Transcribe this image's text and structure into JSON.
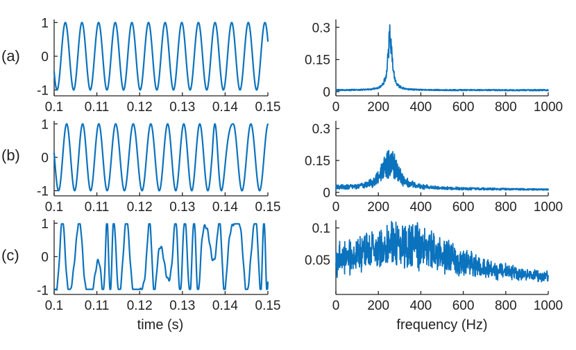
{
  "colors": {
    "series": "#0b72bd",
    "axis": "#222222"
  },
  "panel_labels": [
    "(a)",
    "(b)",
    "(c)"
  ],
  "axis_titles": {
    "time": "time (s)",
    "frequency": "frequency (Hz)"
  },
  "chart_data": [
    {
      "id": "a-time",
      "type": "line",
      "row": 0,
      "col": 0,
      "xlim": [
        0.1,
        0.15
      ],
      "ylim": [
        -1.05,
        1.05
      ],
      "xticks": [
        0.1,
        0.11,
        0.12,
        0.13,
        0.14,
        0.15
      ],
      "xtick_labels": [
        "0.1",
        "0.11",
        "0.12",
        "0.13",
        "0.14",
        "0.15"
      ],
      "yticks": [
        -1,
        0,
        1
      ],
      "ytick_labels": [
        "-1",
        "0",
        "1"
      ],
      "xlabel": "",
      "ylabel": "",
      "signal": {
        "kind": "sine",
        "freq_hz": 257,
        "phase": -0.78,
        "amplitude": 1.0,
        "disturbance": "none"
      }
    },
    {
      "id": "a-spectrum",
      "type": "line",
      "row": 0,
      "col": 1,
      "xlim": [
        0,
        1000
      ],
      "ylim": [
        0,
        0.33
      ],
      "xticks": [
        0,
        200,
        400,
        600,
        800,
        1000
      ],
      "xtick_labels": [
        "0",
        "200",
        "400",
        "600",
        "800",
        "1000"
      ],
      "yticks": [
        0,
        0.15,
        0.3
      ],
      "ytick_labels": [
        "0",
        "0.15",
        "0.3"
      ],
      "xlabel": "",
      "ylabel": "",
      "spectrum": {
        "peak_freq_hz": 255,
        "peak_value": 0.32,
        "width_hz": 12,
        "noise_floor": 0.004,
        "noise_span": 0.006
      }
    },
    {
      "id": "b-time",
      "type": "line",
      "row": 1,
      "col": 0,
      "xlim": [
        0.1,
        0.15
      ],
      "ylim": [
        -1.05,
        1.05
      ],
      "xticks": [
        0.1,
        0.11,
        0.12,
        0.13,
        0.14,
        0.15
      ],
      "xtick_labels": [
        "0.1",
        "0.11",
        "0.12",
        "0.13",
        "0.14",
        "0.15"
      ],
      "yticks": [
        -1,
        0,
        1
      ],
      "ytick_labels": [
        "-1",
        "0",
        "1"
      ],
      "xlabel": "",
      "ylabel": "",
      "signal": {
        "kind": "sine",
        "freq_hz": 255,
        "phase": 0.2,
        "amplitude": 1.0,
        "disturbance": "light"
      }
    },
    {
      "id": "b-spectrum",
      "type": "line",
      "row": 1,
      "col": 1,
      "xlim": [
        0,
        1000
      ],
      "ylim": [
        0,
        0.33
      ],
      "xticks": [
        0,
        200,
        400,
        600,
        800,
        1000
      ],
      "xtick_labels": [
        "0",
        "200",
        "400",
        "600",
        "800",
        "1000"
      ],
      "yticks": [
        0,
        0.15,
        0.3
      ],
      "ytick_labels": [
        "0",
        "0.15",
        "0.3"
      ],
      "xlabel": "",
      "ylabel": "",
      "spectrum": {
        "peak_freq_hz": 255,
        "peak_value": 0.2,
        "width_hz": 45,
        "noise_floor": 0.01,
        "noise_span": 0.02
      }
    },
    {
      "id": "c-time",
      "type": "line",
      "row": 2,
      "col": 0,
      "xlim": [
        0.1,
        0.15
      ],
      "ylim": [
        -1.05,
        1.05
      ],
      "xticks": [
        0.1,
        0.11,
        0.12,
        0.13,
        0.14,
        0.15
      ],
      "xtick_labels": [
        "0.1",
        "0.11",
        "0.12",
        "0.13",
        "0.14",
        "0.15"
      ],
      "yticks": [
        -1,
        0,
        1
      ],
      "ytick_labels": [
        "-1",
        "0",
        "1"
      ],
      "xlabel": "time (s)",
      "ylabel": "",
      "signal": {
        "kind": "sine",
        "freq_hz": 255,
        "phase": 0.5,
        "amplitude": 1.0,
        "disturbance": "heavy"
      }
    },
    {
      "id": "c-spectrum",
      "type": "line",
      "row": 2,
      "col": 1,
      "xlim": [
        0,
        1000
      ],
      "ylim": [
        0,
        0.11
      ],
      "xticks": [
        0,
        200,
        400,
        600,
        800,
        1000
      ],
      "xtick_labels": [
        "0",
        "200",
        "400",
        "600",
        "800",
        "1000"
      ],
      "yticks": [
        0.05,
        0.1
      ],
      "ytick_labels": [
        "0.05",
        "0.1"
      ],
      "xlabel": "frequency (Hz)",
      "ylabel": "",
      "spectrum": {
        "peak_freq_hz": 330,
        "peak_value": 0.08,
        "width_hz": 260,
        "noise_floor": 0.012,
        "noise_span": 0.035
      }
    }
  ]
}
